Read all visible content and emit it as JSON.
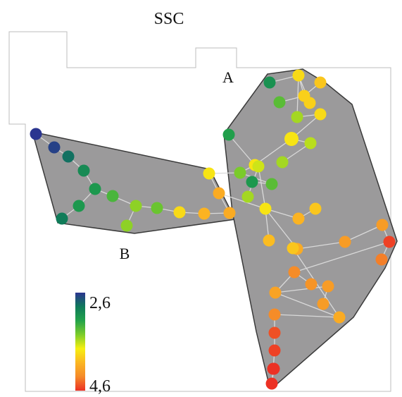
{
  "labels": {
    "title": "SSC",
    "region_a": "A",
    "region_b": "B"
  },
  "colorbar": {
    "min_label": "2,6",
    "max_label": "4,6",
    "min_value": 2.6,
    "max_value": 4.6,
    "colors": [
      "#2b3590",
      "#0f7a5a",
      "#22a24a",
      "#7ccc2a",
      "#f6ef10",
      "#fbb622",
      "#f58a28",
      "#ec3124"
    ]
  },
  "colors": {
    "region_fill": "#9b9a9b",
    "region_stroke": "#3a3a3a",
    "outline": "#bdbdbd",
    "edge": "#d9d9d9"
  },
  "nodes": [
    {
      "id": "b1",
      "v": 2.6
    },
    {
      "id": "b2",
      "v": 2.65
    },
    {
      "id": "b3",
      "v": 2.85
    },
    {
      "id": "b4",
      "v": 3.0
    },
    {
      "id": "b5",
      "v": 3.1
    },
    {
      "id": "b6",
      "v": 3.3
    },
    {
      "id": "b7",
      "v": 3.5
    },
    {
      "id": "b8",
      "v": 3.1
    },
    {
      "id": "b9",
      "v": 2.9
    },
    {
      "id": "b10",
      "v": 3.4
    },
    {
      "id": "b11",
      "v": 3.85
    },
    {
      "id": "b12",
      "v": 4.05
    },
    {
      "id": "b13",
      "v": 4.1
    },
    {
      "id": "b14",
      "v": 4.1
    },
    {
      "id": "b15",
      "v": 3.8
    },
    {
      "id": "b16",
      "v": 3.5
    },
    {
      "id": "a1",
      "v": 3.05
    },
    {
      "id": "a2",
      "v": 3.85
    },
    {
      "id": "a3",
      "v": 3.9
    },
    {
      "id": "a4",
      "v": 3.95
    },
    {
      "id": "a5",
      "v": 3.35
    },
    {
      "id": "a6",
      "v": 3.9
    },
    {
      "id": "a7",
      "v": 3.55
    },
    {
      "id": "a8",
      "v": 3.85
    },
    {
      "id": "a9",
      "v": 3.15
    },
    {
      "id": "a10",
      "v": 3.8
    },
    {
      "id": "a11",
      "v": 3.6
    },
    {
      "id": "a12",
      "v": 3.55
    },
    {
      "id": "a13",
      "v": 3.8
    },
    {
      "id": "a14",
      "v": 3.45
    },
    {
      "id": "a15",
      "v": 3.1
    },
    {
      "id": "a16",
      "v": 3.35
    },
    {
      "id": "a17",
      "v": 3.55
    },
    {
      "id": "a18",
      "v": 3.8
    },
    {
      "id": "a19",
      "v": 3.65
    },
    {
      "id": "a20",
      "v": 4.05
    },
    {
      "id": "a21",
      "v": 3.95
    },
    {
      "id": "a22",
      "v": 4.0
    },
    {
      "id": "a23",
      "v": 4.1
    },
    {
      "id": "a24",
      "v": 4.2
    },
    {
      "id": "a25",
      "v": 4.2
    },
    {
      "id": "a26",
      "v": 4.55
    },
    {
      "id": "a27",
      "v": 4.35
    },
    {
      "id": "a28",
      "v": 4.3
    },
    {
      "id": "a29",
      "v": 4.25
    },
    {
      "id": "a30",
      "v": 4.15
    },
    {
      "id": "a31",
      "v": 4.2
    },
    {
      "id": "a32",
      "v": 4.2
    },
    {
      "id": "a33",
      "v": 4.1
    },
    {
      "id": "a34",
      "v": 3.95
    },
    {
      "id": "a35",
      "v": 4.3
    },
    {
      "id": "a36",
      "v": 4.5
    },
    {
      "id": "a37",
      "v": 4.55
    },
    {
      "id": "a38",
      "v": 4.6
    },
    {
      "id": "a39",
      "v": 4.6
    },
    {
      "id": "a40",
      "v": 4.6
    }
  ],
  "edges": [
    [
      "b1",
      "b2"
    ],
    [
      "b2",
      "b3"
    ],
    [
      "b3",
      "b4"
    ],
    [
      "b4",
      "b5"
    ],
    [
      "b5",
      "b6"
    ],
    [
      "b6",
      "b7"
    ],
    [
      "b5",
      "b8"
    ],
    [
      "b8",
      "b9"
    ],
    [
      "b7",
      "b16"
    ],
    [
      "b7",
      "b10"
    ],
    [
      "b10",
      "b11"
    ],
    [
      "b11",
      "b12"
    ],
    [
      "b12",
      "b13"
    ],
    [
      "b13",
      "b14"
    ],
    [
      "b14",
      "b15"
    ],
    [
      "b15",
      "a14"
    ],
    [
      "b14",
      "a18"
    ],
    [
      "a1",
      "a2"
    ],
    [
      "a2",
      "a3"
    ],
    [
      "a3",
      "a4"
    ],
    [
      "a3",
      "a5"
    ],
    [
      "a6",
      "a2"
    ],
    [
      "a2",
      "a7"
    ],
    [
      "a7",
      "a8"
    ],
    [
      "a8",
      "a10"
    ],
    [
      "a10",
      "a11"
    ],
    [
      "a10",
      "a13"
    ],
    [
      "a13",
      "a19"
    ],
    [
      "a11",
      "a12"
    ],
    [
      "a9",
      "a13"
    ],
    [
      "a13",
      "a14"
    ],
    [
      "a14",
      "a16"
    ],
    [
      "a15",
      "a16"
    ],
    [
      "a17",
      "a19"
    ],
    [
      "a19",
      "a18"
    ],
    [
      "a18",
      "a20"
    ],
    [
      "a20",
      "a21"
    ],
    [
      "a18",
      "a22"
    ],
    [
      "a18",
      "a23"
    ],
    [
      "a23",
      "a24"
    ],
    [
      "a24",
      "a25"
    ],
    [
      "a25",
      "a26"
    ],
    [
      "a26",
      "a27"
    ],
    [
      "a26",
      "a28"
    ],
    [
      "a28",
      "a29"
    ],
    [
      "a28",
      "a30"
    ],
    [
      "a30",
      "a31"
    ],
    [
      "a31",
      "a32"
    ],
    [
      "a30",
      "a33"
    ],
    [
      "a33",
      "a34"
    ],
    [
      "a33",
      "a35"
    ],
    [
      "a35",
      "a36"
    ],
    [
      "a36",
      "a37"
    ],
    [
      "a37",
      "a38"
    ],
    [
      "a38",
      "a39"
    ],
    [
      "a39",
      "a40"
    ]
  ]
}
